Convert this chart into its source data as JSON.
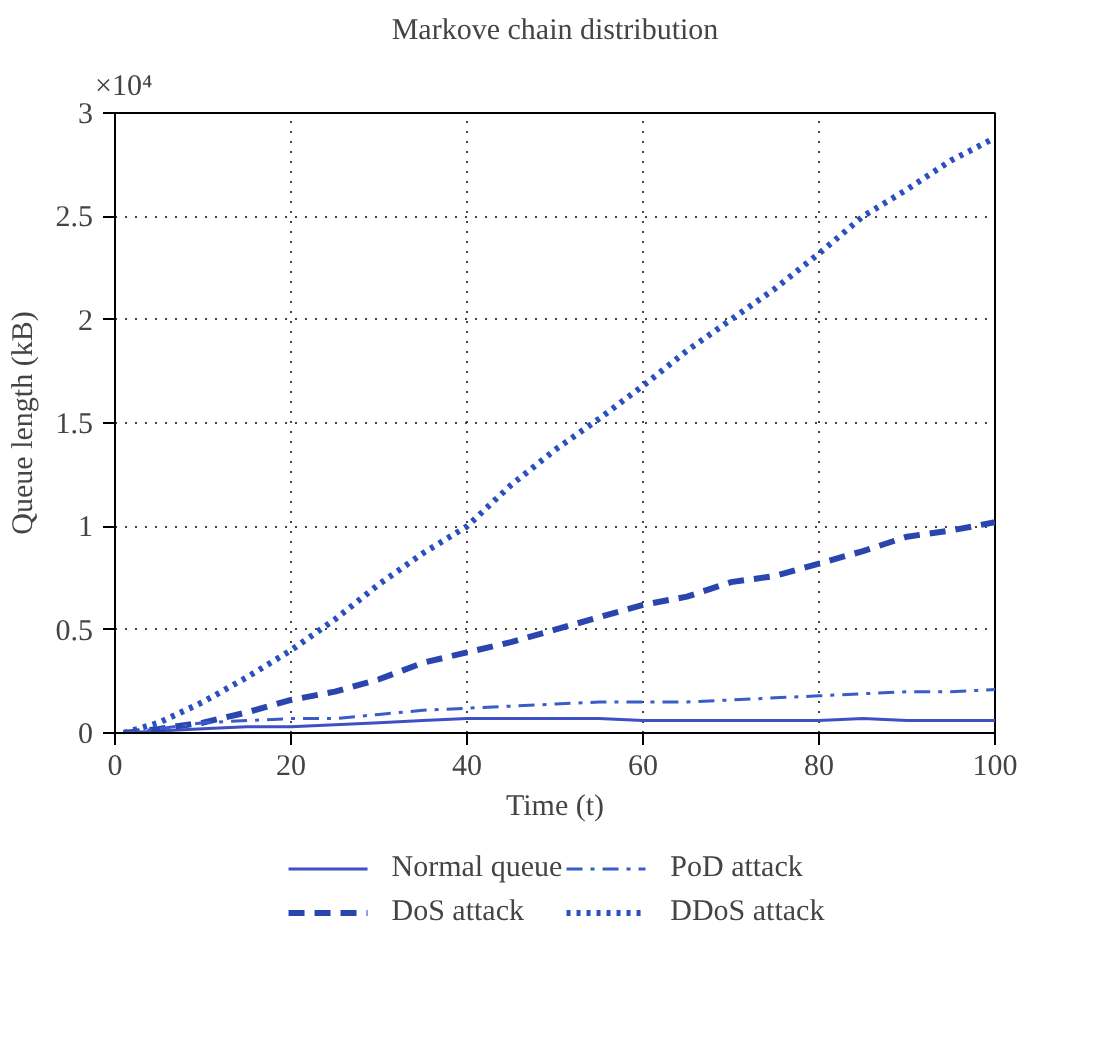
{
  "chart_data": {
    "type": "line",
    "title": "Markove chain distribution",
    "xlabel": "Time (t)",
    "ylabel": "Queue length (kB)",
    "annotations": [
      "×10⁴"
    ],
    "xlim": [
      0,
      100
    ],
    "ylim": [
      0,
      3
    ],
    "xticks": [
      0,
      20,
      40,
      60,
      80,
      100
    ],
    "yticks": [
      0,
      0.5,
      1,
      1.5,
      2,
      2.5,
      3
    ],
    "grid": true,
    "legend": "bottom",
    "x": [
      1,
      5,
      10,
      15,
      20,
      25,
      30,
      35,
      40,
      45,
      50,
      55,
      60,
      65,
      70,
      75,
      80,
      85,
      90,
      95,
      100
    ],
    "series": [
      {
        "name": "Normal queue",
        "color": "#3f4fc4",
        "line_style": "solid",
        "values": [
          0,
          0.01,
          0.02,
          0.03,
          0.03,
          0.04,
          0.05,
          0.06,
          0.07,
          0.07,
          0.07,
          0.07,
          0.06,
          0.06,
          0.06,
          0.06,
          0.06,
          0.07,
          0.06,
          0.06,
          0.06
        ]
      },
      {
        "name": "DoS attack",
        "color": "#2a45ad",
        "line_style": "dashed",
        "values": [
          0,
          0.02,
          0.05,
          0.1,
          0.16,
          0.2,
          0.26,
          0.34,
          0.39,
          0.44,
          0.5,
          0.56,
          0.62,
          0.66,
          0.73,
          0.76,
          0.82,
          0.88,
          0.95,
          0.98,
          1.02
        ]
      },
      {
        "name": "PoD attack",
        "color": "#3a5cc8",
        "line_style": "dashdot",
        "values": [
          0,
          0.02,
          0.05,
          0.06,
          0.07,
          0.07,
          0.09,
          0.11,
          0.12,
          0.13,
          0.14,
          0.15,
          0.15,
          0.15,
          0.16,
          0.17,
          0.18,
          0.19,
          0.2,
          0.2,
          0.21
        ]
      },
      {
        "name": "DDoS attack",
        "color": "#2a4fc0",
        "line_style": "dotted",
        "values": [
          0,
          0.05,
          0.15,
          0.27,
          0.4,
          0.55,
          0.72,
          0.87,
          1.0,
          1.2,
          1.37,
          1.52,
          1.68,
          1.85,
          2.0,
          2.15,
          2.32,
          2.5,
          2.63,
          2.77,
          2.88
        ]
      }
    ]
  }
}
